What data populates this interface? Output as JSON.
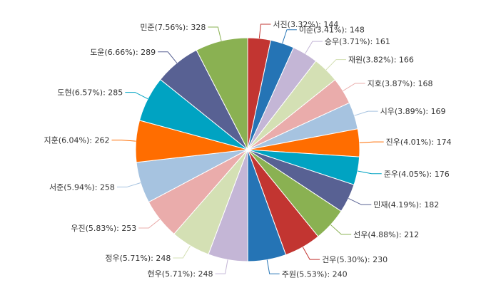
{
  "chart_data": {
    "type": "pie",
    "start_angle_deg": 0,
    "direction": "clockwise",
    "slices": [
      {
        "label": "서진(3.32%): 144",
        "name": "서진",
        "value": 144,
        "percent": 3.32,
        "color": "#c23531"
      },
      {
        "label": "이준(3.41%): 148",
        "name": "이준",
        "value": 148,
        "percent": 3.41,
        "color": "#2574b5"
      },
      {
        "label": "승우(3.71%): 161",
        "name": "승우",
        "value": 161,
        "percent": 3.71,
        "color": "#c4b6d6"
      },
      {
        "label": "재원(3.82%): 166",
        "name": "재원",
        "value": 166,
        "percent": 3.82,
        "color": "#d4e0b4"
      },
      {
        "label": "지호(3.87%): 168",
        "name": "지호",
        "value": 168,
        "percent": 3.87,
        "color": "#eaacab"
      },
      {
        "label": "시우(3.89%): 169",
        "name": "시우",
        "value": 169,
        "percent": 3.89,
        "color": "#a6c3e0"
      },
      {
        "label": "진우(4.01%): 174",
        "name": "진우",
        "value": 174,
        "percent": 4.01,
        "color": "#ff6d00"
      },
      {
        "label": "준우(4.05%): 176",
        "name": "준우",
        "value": 176,
        "percent": 4.05,
        "color": "#00a3c2"
      },
      {
        "label": "민재(4.19%): 182",
        "name": "민재",
        "value": 182,
        "percent": 4.19,
        "color": "#586193"
      },
      {
        "label": "선우(4.88%): 212",
        "name": "선우",
        "value": 212,
        "percent": 4.88,
        "color": "#8ab152"
      },
      {
        "label": "건우(5.30%): 230",
        "name": "건우",
        "value": 230,
        "percent": 5.3,
        "color": "#c23531"
      },
      {
        "label": "주원(5.53%): 240",
        "name": "주원",
        "value": 240,
        "percent": 5.53,
        "color": "#2574b5"
      },
      {
        "label": "현우(5.71%): 248",
        "name": "현우",
        "value": 248,
        "percent": 5.71,
        "color": "#c4b6d6"
      },
      {
        "label": "정우(5.71%): 248",
        "name": "정우",
        "value": 248,
        "percent": 5.71,
        "color": "#d4e0b4"
      },
      {
        "label": "우진(5.83%): 253",
        "name": "우진",
        "value": 253,
        "percent": 5.83,
        "color": "#eaacab"
      },
      {
        "label": "서준(5.94%): 258",
        "name": "서준",
        "value": 258,
        "percent": 5.94,
        "color": "#a6c3e0"
      },
      {
        "label": "지훈(6.04%): 262",
        "name": "지훈",
        "value": 262,
        "percent": 6.04,
        "color": "#ff6d00"
      },
      {
        "label": "도현(6.57%): 285",
        "name": "도현",
        "value": 285,
        "percent": 6.57,
        "color": "#00a3c2"
      },
      {
        "label": "도윤(6.66%): 289",
        "name": "도윤",
        "value": 289,
        "percent": 6.66,
        "color": "#586193"
      },
      {
        "label": "민준(7.56%): 328",
        "name": "민준",
        "value": 328,
        "percent": 7.56,
        "color": "#8ab152"
      }
    ]
  }
}
